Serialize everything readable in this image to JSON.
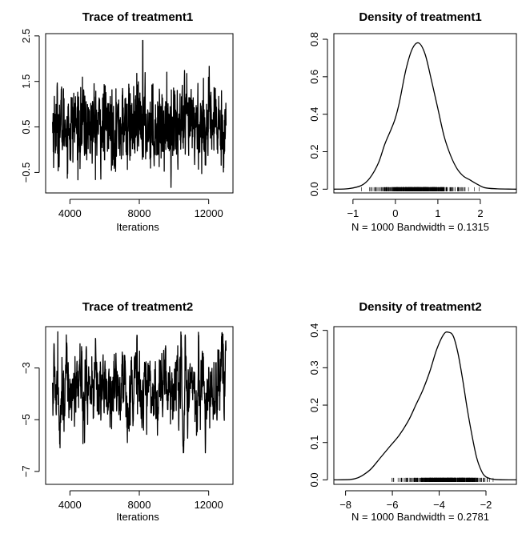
{
  "chart_data": [
    {
      "type": "line",
      "title": "Trace of treatment1",
      "xlabel": "Iterations",
      "ylabel": "",
      "xlim": [
        2600,
        13400
      ],
      "ylim": [
        -0.95,
        2.55
      ],
      "xticks": [
        4000,
        8000,
        12000
      ],
      "xtick_labels": [
        "4000",
        "8000",
        "12000"
      ],
      "yticks": [
        -0.5,
        0.5,
        1.5,
        2.5
      ],
      "ytick_labels": [
        "−0.5",
        "0.5",
        "1.5",
        "2.5"
      ],
      "trace": {
        "x_start": 3000,
        "x_end": 13000,
        "n": 1000,
        "mean": 0.52,
        "sd": 0.44,
        "min": -0.85,
        "max": 2.4,
        "max_at": 8200
      }
    },
    {
      "type": "line",
      "title": "Density of treatment1",
      "xlabel": "N = 1000   Bandwidth = 0.1315",
      "ylabel": "",
      "xlim": [
        -1.45,
        2.85
      ],
      "ylim": [
        -0.02,
        0.83
      ],
      "xticks": [
        -1,
        0,
        1,
        2
      ],
      "xtick_labels": [
        "−1",
        "0",
        "1",
        "2"
      ],
      "yticks": [
        0.0,
        0.2,
        0.4,
        0.6,
        0.8
      ],
      "ytick_labels": [
        "0.0",
        "0.2",
        "0.4",
        "0.6",
        "0.8"
      ],
      "density": {
        "x": [
          -1.45,
          -1.1,
          -0.8,
          -0.6,
          -0.4,
          -0.25,
          -0.1,
          0.0,
          0.1,
          0.25,
          0.4,
          0.55,
          0.7,
          0.85,
          1.0,
          1.15,
          1.3,
          1.45,
          1.6,
          1.75,
          1.9,
          2.1,
          2.4,
          2.85
        ],
        "y": [
          0.0,
          0.003,
          0.02,
          0.06,
          0.14,
          0.24,
          0.32,
          0.38,
          0.47,
          0.64,
          0.75,
          0.78,
          0.72,
          0.58,
          0.43,
          0.28,
          0.18,
          0.11,
          0.07,
          0.05,
          0.03,
          0.008,
          0.002,
          0.0
        ]
      },
      "rug": {
        "min": -0.85,
        "max": 2.4,
        "center": 0.52,
        "sd": 0.44
      }
    },
    {
      "type": "line",
      "title": "Trace of treatment2",
      "xlabel": "Iterations",
      "ylabel": "",
      "xlim": [
        2600,
        13400
      ],
      "ylim": [
        -7.5,
        -1.4
      ],
      "xticks": [
        4000,
        8000,
        12000
      ],
      "xtick_labels": [
        "4000",
        "8000",
        "12000"
      ],
      "yticks": [
        -7,
        -5,
        -3
      ],
      "ytick_labels": [
        "−7",
        "−5",
        "−3"
      ],
      "trace": {
        "x_start": 3000,
        "x_end": 13000,
        "n": 1000,
        "mean": -3.7,
        "sd": 0.85,
        "min": -7.2,
        "max": -1.6,
        "max_at": 3300
      }
    },
    {
      "type": "line",
      "title": "Density of treatment2",
      "xlabel": "N = 1000   Bandwidth = 0.2781",
      "ylabel": "",
      "xlim": [
        -8.5,
        -0.7
      ],
      "ylim": [
        -0.012,
        0.41
      ],
      "xticks": [
        -8,
        -6,
        -4,
        -2
      ],
      "xtick_labels": [
        "−8",
        "−6",
        "−4",
        "−2"
      ],
      "yticks": [
        0.0,
        0.1,
        0.2,
        0.3,
        0.4
      ],
      "ytick_labels": [
        "0.0",
        "0.1",
        "0.2",
        "0.3",
        "0.4"
      ],
      "density": {
        "x": [
          -8.5,
          -7.8,
          -7.5,
          -7.2,
          -6.9,
          -6.5,
          -6.1,
          -5.7,
          -5.3,
          -5.0,
          -4.7,
          -4.4,
          -4.1,
          -3.8,
          -3.6,
          -3.4,
          -3.2,
          -3.0,
          -2.8,
          -2.6,
          -2.4,
          -2.2,
          -2.0,
          -1.6,
          -0.7
        ],
        "y": [
          0.0,
          0.001,
          0.005,
          0.015,
          0.03,
          0.06,
          0.09,
          0.12,
          0.16,
          0.2,
          0.24,
          0.29,
          0.35,
          0.39,
          0.395,
          0.385,
          0.34,
          0.27,
          0.19,
          0.12,
          0.06,
          0.025,
          0.008,
          0.001,
          0.0
        ]
      },
      "rug": {
        "min": -7.2,
        "max": -1.6,
        "center": -3.7,
        "sd": 0.85
      }
    }
  ]
}
